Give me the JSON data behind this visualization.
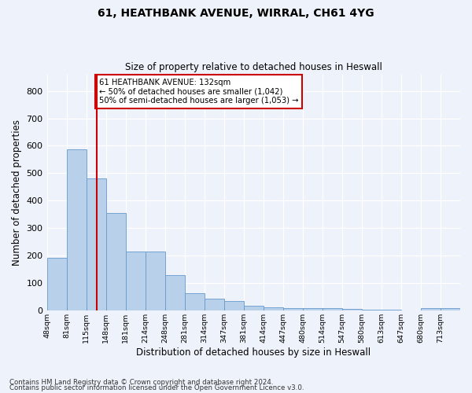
{
  "title1": "61, HEATHBANK AVENUE, WIRRAL, CH61 4YG",
  "title2": "Size of property relative to detached houses in Heswall",
  "xlabel": "Distribution of detached houses by size in Heswall",
  "ylabel": "Number of detached properties",
  "bin_labels": [
    "48sqm",
    "81sqm",
    "115sqm",
    "148sqm",
    "181sqm",
    "214sqm",
    "248sqm",
    "281sqm",
    "314sqm",
    "347sqm",
    "381sqm",
    "414sqm",
    "447sqm",
    "480sqm",
    "514sqm",
    "547sqm",
    "580sqm",
    "613sqm",
    "647sqm",
    "680sqm",
    "713sqm"
  ],
  "bar_values": [
    193,
    588,
    480,
    355,
    215,
    215,
    130,
    65,
    43,
    35,
    17,
    12,
    10,
    10,
    8,
    7,
    5,
    3,
    2,
    8,
    8
  ],
  "bar_color": "#b8d0ea",
  "bar_edge_color": "#6699cc",
  "property_size_idx": 2.55,
  "vline_color": "#cc0000",
  "annotation_box_color": "#cc0000",
  "annotation_lines": [
    "61 HEATHBANK AVENUE: 132sqm",
    "← 50% of detached houses are smaller (1,042)",
    "50% of semi-detached houses are larger (1,053) →"
  ],
  "ylim": [
    0,
    860
  ],
  "yticks": [
    0,
    100,
    200,
    300,
    400,
    500,
    600,
    700,
    800
  ],
  "footer_line1": "Contains HM Land Registry data © Crown copyright and database right 2024.",
  "footer_line2": "Contains public sector information licensed under the Open Government Licence v3.0.",
  "bg_color": "#eef2fa",
  "plot_bg_color": "#eef2fa"
}
